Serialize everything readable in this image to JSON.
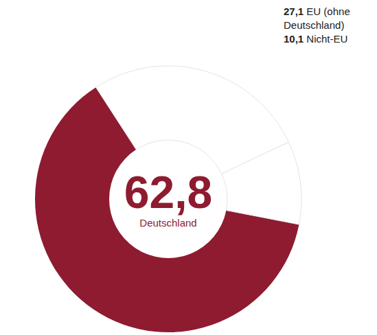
{
  "chart_data": {
    "type": "pie",
    "categories": [
      "Deutschland",
      "EU (ohne Deutschland)",
      "Nicht-EU"
    ],
    "values": [
      62.8,
      27.1,
      10.1
    ],
    "value_labels": [
      "62,8",
      "27,1",
      "10,1"
    ],
    "colors": [
      "#8e1b30",
      "#ffffff",
      "#ffffff"
    ],
    "legend": "top-right"
  }
}
